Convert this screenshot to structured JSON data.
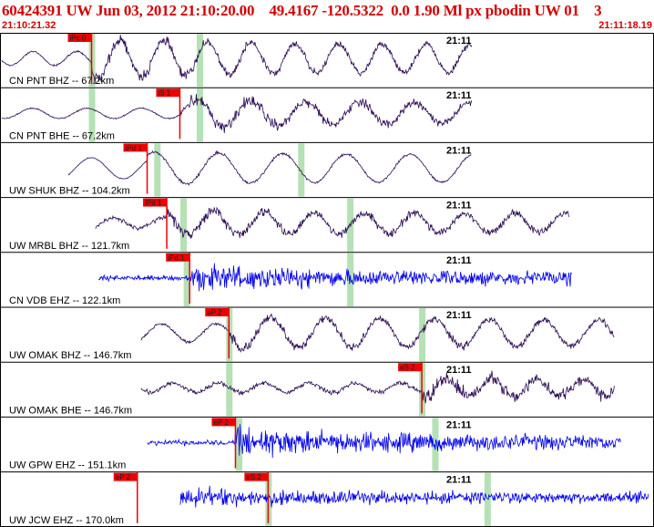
{
  "header": {
    "title": "60424391 UW Jun 03, 2012 21:10:20.00    49.4167 -120.5322  0.0 1.90 Ml px pbodin UW 01    3",
    "time_start": "21:10:21.32",
    "time_end": "21:11:18.19"
  },
  "chart_data": {
    "type": "line",
    "time_range": [
      "21:10:21.32",
      "21:11:18.19"
    ],
    "minute_mark_label": "21:11",
    "colors": {
      "short_period": "#0000ee",
      "broadband": "#2a0a55",
      "pick": "#ee0000",
      "window": "#a8dca8"
    },
    "series": [
      {
        "name": "CN PNT BHZ -- 67.2km",
        "type": "broadband",
        "picks": [
          {
            "label": "iPc 0",
            "t": 0.14
          }
        ],
        "windows": [
          0.14,
          0.305
        ]
      },
      {
        "name": "CN PNT BHE -- 67.2km",
        "type": "broadband",
        "picks": [
          {
            "label": "iS 1",
            "t": 0.275
          }
        ],
        "windows": [
          0.14,
          0.305
        ]
      },
      {
        "name": "UW SHUK BHZ -- 104.2km",
        "type": "broadband",
        "picks": [
          {
            "label": "iPd 1",
            "t": 0.225
          }
        ],
        "windows": [
          0.24,
          0.46
        ]
      },
      {
        "name": "UW MRBL BHZ -- 121.7km",
        "type": "broadband",
        "picks": [
          {
            "label": "iPd 1",
            "t": 0.255
          }
        ],
        "windows": [
          0.28,
          0.535
        ]
      },
      {
        "name": "CN VDB EHZ -- 122.1km",
        "type": "short-period",
        "picks": [
          {
            "label": "iPd 1",
            "t": 0.29
          }
        ],
        "windows": [
          0.285,
          0.535
        ]
      },
      {
        "name": "UW OMAK BHZ -- 146.7km",
        "type": "broadband",
        "picks": [
          {
            "label": "eP 2",
            "t": 0.35
          }
        ],
        "windows": [
          0.35,
          0.645
        ]
      },
      {
        "name": "UW OMAK BHE -- 146.7km",
        "type": "broadband",
        "picks": [
          {
            "label": "eS 2",
            "t": 0.645
          }
        ],
        "windows": [
          0.35,
          0.645
        ]
      },
      {
        "name": "UW GPW EHZ -- 151.1km",
        "type": "short-period",
        "picks": [
          {
            "label": "eP 2",
            "t": 0.36
          }
        ],
        "windows": [
          0.365,
          0.665
        ]
      },
      {
        "name": "UW JCW EHZ -- 170.0km",
        "type": "short-period",
        "picks": [
          {
            "label": "eP 2",
            "t": 0.21
          },
          {
            "label": "eS 2",
            "t": 0.41
          }
        ],
        "windows": [
          0.41,
          0.745
        ]
      }
    ]
  }
}
